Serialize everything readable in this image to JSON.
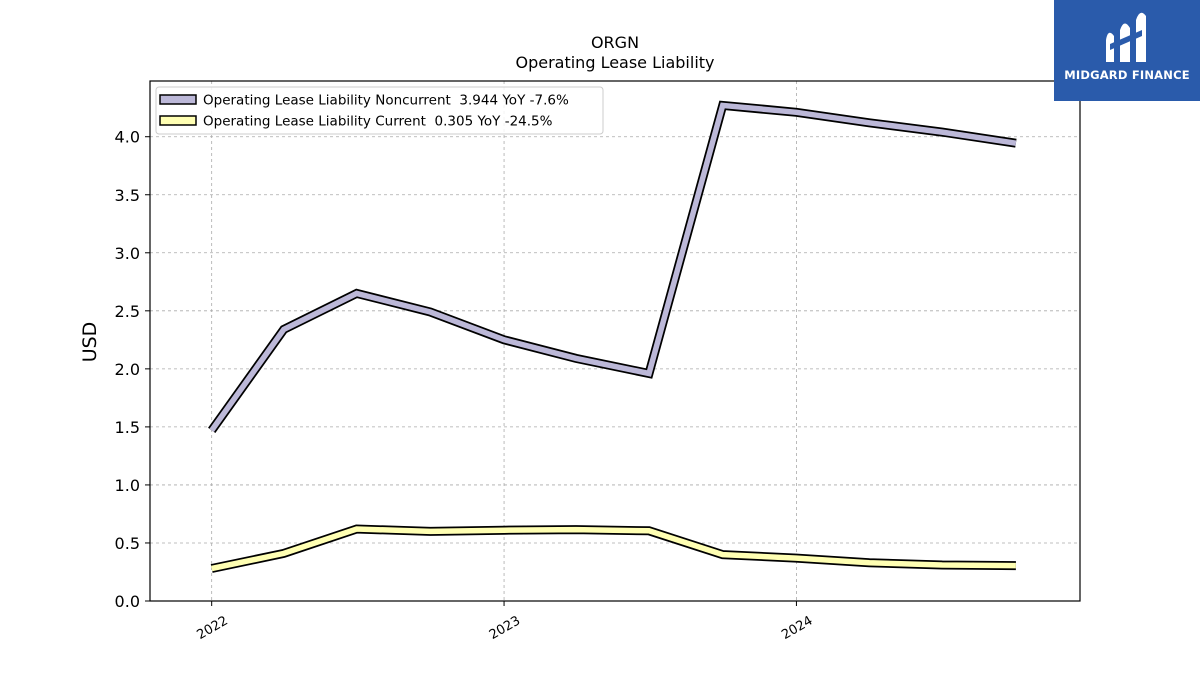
{
  "logo": {
    "text": "MIDGARD FINANCE",
    "background": "#2a5bab"
  },
  "chart_data": {
    "type": "line",
    "title": "ORGN",
    "subtitle": "Operating Lease Liability",
    "xlabel": "",
    "ylabel": "USD",
    "x": [
      "2022-01-01",
      "2022-04-01",
      "2022-07-01",
      "2022-10-01",
      "2023-01-01",
      "2023-04-01",
      "2023-07-01",
      "2023-10-01",
      "2024-01-01",
      "2024-04-01",
      "2024-07-01",
      "2024-10-01"
    ],
    "xticks": [
      {
        "label": "2022",
        "date": "2022-01-01"
      },
      {
        "label": "2023",
        "date": "2023-01-01"
      },
      {
        "label": "2024",
        "date": "2024-01-01"
      }
    ],
    "xlim": [
      "2021-10-16",
      "2024-12-20"
    ],
    "ylim": [
      0,
      4.48
    ],
    "yticks": [
      "0.0",
      "0.5",
      "1.0",
      "1.5",
      "2.0",
      "2.5",
      "3.0",
      "3.5",
      "4.0"
    ],
    "grid": true,
    "legend_position": "top-left",
    "series": [
      {
        "name": "Operating Lease Liability Noncurrent  3.944 YoY -7.6%",
        "color": "#bcb8d8",
        "values": [
          1.47,
          2.34,
          2.65,
          2.49,
          2.25,
          2.09,
          1.96,
          4.27,
          4.21,
          4.12,
          4.04,
          3.944
        ]
      },
      {
        "name": "Operating Lease Liability Current  0.305 YoY -24.5%",
        "color": "#ffffb3",
        "values": [
          0.28,
          0.41,
          0.62,
          0.6,
          0.61,
          0.615,
          0.605,
          0.4,
          0.37,
          0.33,
          0.31,
          0.305
        ]
      }
    ]
  }
}
